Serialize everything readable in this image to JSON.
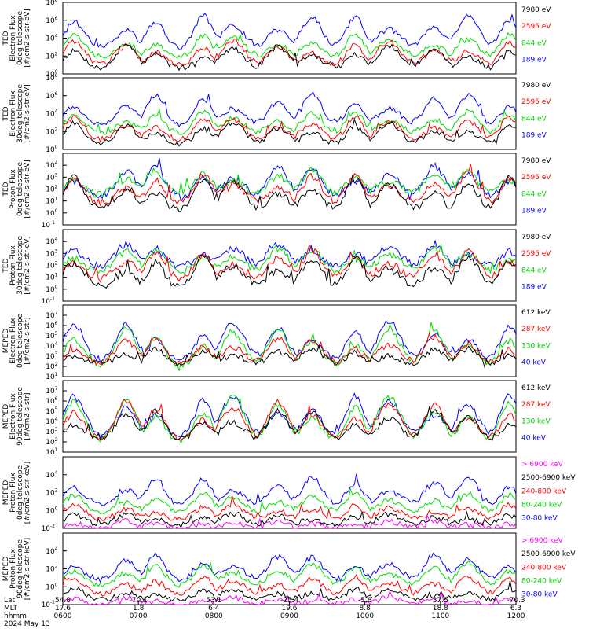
{
  "chart_data": [
    {
      "type": "line",
      "ylabel": [
        "TED",
        "Electron Flux",
        "0deg telescope",
        "[#/cm2-s-str-eV]"
      ],
      "log_scale": true,
      "ylim": [
        1,
        100000000
      ],
      "y_ticks": [
        {
          "base": "10",
          "exp": "0"
        },
        {
          "base": "10",
          "exp": "2"
        },
        {
          "base": "10",
          "exp": "4"
        },
        {
          "base": "10",
          "exp": "6"
        },
        {
          "base": "10",
          "exp": "8"
        }
      ],
      "legend_placement": "right",
      "series": [
        {
          "name": "7980 eV",
          "color": "#000000",
          "baseline": 0.6,
          "peak": 3.2
        },
        {
          "name": "2595 eV",
          "color": "#ff0000",
          "baseline": 1.0,
          "peak": 3.7
        },
        {
          "name": "844 eV",
          "color": "#00dd00",
          "baseline": 1.9,
          "peak": 4.4
        },
        {
          "name": "189 eV",
          "color": "#0000ff",
          "baseline": 3.0,
          "peak": 6.6
        }
      ]
    },
    {
      "type": "line",
      "ylabel": [
        "TED",
        "Electron Flux",
        "30deg telescope",
        "[#/cm2-s-str-eV]"
      ],
      "log_scale": true,
      "ylim": [
        1,
        100000000
      ],
      "y_ticks": [
        {
          "base": "10",
          "exp": "0"
        },
        {
          "base": "10",
          "exp": "2"
        },
        {
          "base": "10",
          "exp": "4"
        },
        {
          "base": "10",
          "exp": "6"
        },
        {
          "base": "10",
          "exp": "8"
        }
      ],
      "legend_placement": "right",
      "series": [
        {
          "name": "7980 eV",
          "color": "#000000",
          "baseline": 0.6,
          "peak": 3.0
        },
        {
          "name": "2595 eV",
          "color": "#ff0000",
          "baseline": 1.1,
          "peak": 3.6
        },
        {
          "name": "844 eV",
          "color": "#00dd00",
          "baseline": 1.8,
          "peak": 4.3
        },
        {
          "name": "189 eV",
          "color": "#0000ff",
          "baseline": 2.8,
          "peak": 6.2
        }
      ]
    },
    {
      "type": "line",
      "ylabel": [
        "TED",
        "Proton Flux",
        "0deg telescope",
        "[#/cm2-s-str-eV]"
      ],
      "log_scale": true,
      "ylim": [
        0.1,
        100000
      ],
      "y_ticks": [
        {
          "base": "10",
          "exp": "-1"
        },
        {
          "base": "10",
          "exp": "0"
        },
        {
          "base": "10",
          "exp": "1"
        },
        {
          "base": "10",
          "exp": "2"
        },
        {
          "base": "10",
          "exp": "3"
        },
        {
          "base": "10",
          "exp": "4"
        }
      ],
      "legend_placement": "right",
      "series": [
        {
          "name": "7980 eV",
          "color": "#000000",
          "baseline": 0.2,
          "peak": 3.0
        },
        {
          "name": "2595 eV",
          "color": "#ff0000",
          "baseline": 0.8,
          "peak": 3.3
        },
        {
          "name": "844 eV",
          "color": "#00dd00",
          "baseline": 1.6,
          "peak": 3.6
        },
        {
          "name": "189 eV",
          "color": "#0000ff",
          "baseline": 1.4,
          "peak": 3.9
        }
      ]
    },
    {
      "type": "line",
      "ylabel": [
        "TED",
        "Proton Flux",
        "30deg telescope",
        "[#/cm2-s-str-eV]"
      ],
      "log_scale": true,
      "ylim": [
        0.1,
        100000
      ],
      "y_ticks": [
        {
          "base": "10",
          "exp": "-1"
        },
        {
          "base": "10",
          "exp": "0"
        },
        {
          "base": "10",
          "exp": "1"
        },
        {
          "base": "10",
          "exp": "2"
        },
        {
          "base": "10",
          "exp": "3"
        },
        {
          "base": "10",
          "exp": "4"
        }
      ],
      "legend_placement": "right",
      "series": [
        {
          "name": "7980 eV",
          "color": "#000000",
          "baseline": 0.2,
          "peak": 2.8
        },
        {
          "name": "2595 eV",
          "color": "#ff0000",
          "baseline": 0.9,
          "peak": 3.2
        },
        {
          "name": "844 eV",
          "color": "#00dd00",
          "baseline": 1.5,
          "peak": 3.5
        },
        {
          "name": "189 eV",
          "color": "#0000ff",
          "baseline": 1.9,
          "peak": 3.8
        }
      ]
    },
    {
      "type": "line",
      "ylabel": [
        "MEPED",
        "Electron Flux",
        "0deg telescope",
        "[#/cm2-s-str]"
      ],
      "log_scale": true,
      "ylim": [
        10,
        100000000
      ],
      "y_ticks": [
        {
          "base": "10",
          "exp": "1"
        },
        {
          "base": "10",
          "exp": "2"
        },
        {
          "base": "10",
          "exp": "3"
        },
        {
          "base": "10",
          "exp": "4"
        },
        {
          "base": "10",
          "exp": "5"
        },
        {
          "base": "10",
          "exp": "6"
        },
        {
          "base": "10",
          "exp": "7"
        }
      ],
      "legend_placement": "right",
      "series": [
        {
          "name": "612 keV",
          "color": "#000000",
          "baseline": 2.2,
          "peak": 3.8
        },
        {
          "name": "287 keV",
          "color": "#ff0000",
          "baseline": 2.3,
          "peak": 4.9
        },
        {
          "name": "130 keV",
          "color": "#00dd00",
          "baseline": 2.1,
          "peak": 5.8
        },
        {
          "name": "40 keV",
          "color": "#0000ff",
          "baseline": 2.6,
          "peak": 6.4
        }
      ]
    },
    {
      "type": "line",
      "ylabel": [
        "MEPED",
        "Electron Flux",
        "90deg telescope",
        "[#/cm2-s-str]"
      ],
      "log_scale": true,
      "ylim": [
        10,
        100000000
      ],
      "y_ticks": [
        {
          "base": "10",
          "exp": "1"
        },
        {
          "base": "10",
          "exp": "2"
        },
        {
          "base": "10",
          "exp": "3"
        },
        {
          "base": "10",
          "exp": "4"
        },
        {
          "base": "10",
          "exp": "5"
        },
        {
          "base": "10",
          "exp": "6"
        },
        {
          "base": "10",
          "exp": "7"
        }
      ],
      "legend_placement": "right",
      "series": [
        {
          "name": "612 keV",
          "color": "#000000",
          "baseline": 2.2,
          "peak": 5.2
        },
        {
          "name": "287 keV",
          "color": "#ff0000",
          "baseline": 2.3,
          "peak": 6.0
        },
        {
          "name": "130 keV",
          "color": "#00dd00",
          "baseline": 2.1,
          "peak": 6.4
        },
        {
          "name": "40 keV",
          "color": "#0000ff",
          "baseline": 2.6,
          "peak": 6.6
        }
      ]
    },
    {
      "type": "line",
      "ylabel": [
        "MEPED",
        "Proton Flux",
        "0deg telescope",
        "[#/cm2-s-str-keV]"
      ],
      "log_scale": true,
      "ylim": [
        0.01,
        1000000
      ],
      "y_ticks": [
        {
          "base": "10",
          "exp": "-2"
        },
        {
          "base": "10",
          "exp": "0"
        },
        {
          "base": "10",
          "exp": "2"
        },
        {
          "base": "10",
          "exp": "4"
        }
      ],
      "legend_placement": "right",
      "series": [
        {
          "name": "> 6900 keV",
          "color": "#ff00ff",
          "baseline": -2.0,
          "peak": -1.2
        },
        {
          "name": "2500-6900 keV",
          "color": "#000000",
          "baseline": -1.6,
          "peak": -0.4
        },
        {
          "name": "240-800 keV",
          "color": "#ff0000",
          "baseline": -1.0,
          "peak": 0.6
        },
        {
          "name": "80-240 keV",
          "color": "#00dd00",
          "baseline": -0.2,
          "peak": 2.0
        },
        {
          "name": "30-80 keV",
          "color": "#0000ff",
          "baseline": 0.6,
          "peak": 3.8
        }
      ]
    },
    {
      "type": "line",
      "ylabel": [
        "MEPED",
        "Proton Flux",
        "90deg telescope",
        "[#/cm2-s-str-keV]"
      ],
      "log_scale": true,
      "ylim": [
        0.01,
        1000000
      ],
      "y_ticks": [
        {
          "base": "10",
          "exp": "-2"
        },
        {
          "base": "10",
          "exp": "0"
        },
        {
          "base": "10",
          "exp": "2"
        },
        {
          "base": "10",
          "exp": "4"
        }
      ],
      "legend_placement": "right",
      "series": [
        {
          "name": "> 6900 keV",
          "color": "#ff00ff",
          "baseline": -2.0,
          "peak": -1.2
        },
        {
          "name": "2500-6900 keV",
          "color": "#000000",
          "baseline": -1.5,
          "peak": -0.2
        },
        {
          "name": "240-800 keV",
          "color": "#ff0000",
          "baseline": -0.8,
          "peak": 1.2
        },
        {
          "name": "80-240 keV",
          "color": "#00dd00",
          "baseline": 0.2,
          "peak": 2.6
        },
        {
          "name": "30-80 keV",
          "color": "#0000ff",
          "baseline": 0.8,
          "peak": 3.6
        }
      ]
    }
  ],
  "time_axis": {
    "row_labels": [
      "Lat",
      "MLT",
      "hhmm",
      "2024 May 13"
    ],
    "ticks": [
      {
        "lat": "54.8",
        "mlt": "17.6",
        "hhmm": "0600"
      },
      {
        "lat": "-70.1",
        "mlt": "1.8",
        "hhmm": "0700"
      },
      {
        "lat": "53.1",
        "mlt": "6.4",
        "hhmm": "0800"
      },
      {
        "lat": "-25.4",
        "mlt": "19.6",
        "hhmm": "0900"
      },
      {
        "lat": "-5.8",
        "mlt": "8.8",
        "hhmm": "1000"
      },
      {
        "lat": "37.5",
        "mlt": "18.8",
        "hhmm": "1100"
      },
      {
        "lat": "-70.3",
        "mlt": "6.3",
        "hhmm": "1200"
      }
    ]
  }
}
